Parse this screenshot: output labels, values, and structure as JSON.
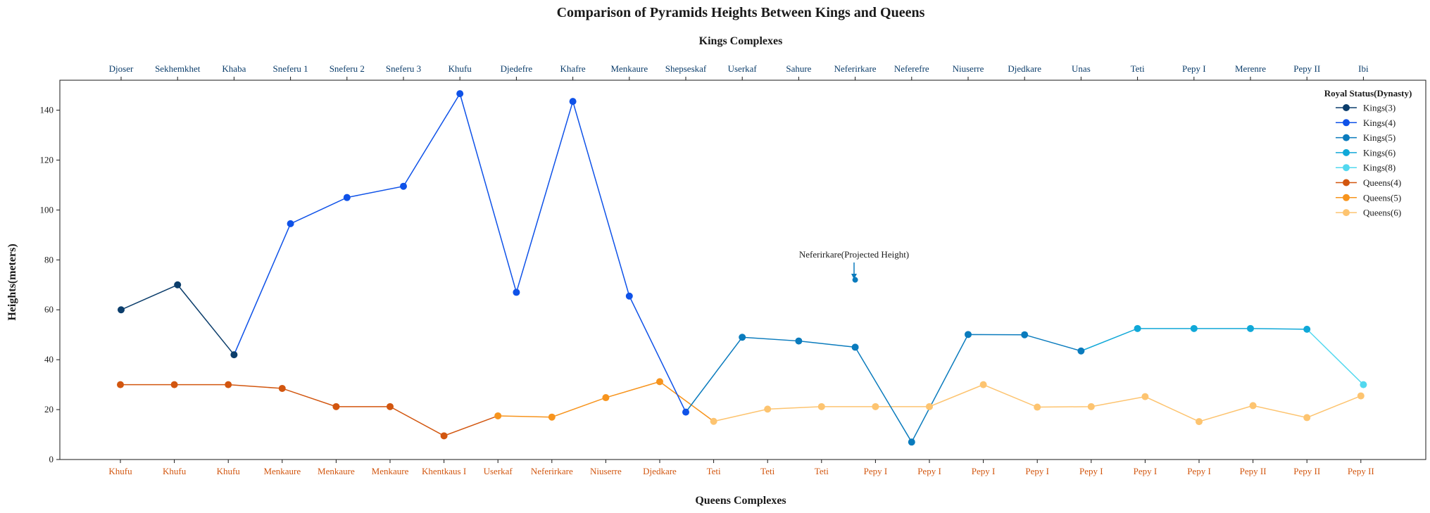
{
  "chart_data": {
    "type": "line",
    "title": "Comparison of Pyramids Heights Between Kings and Queens",
    "top_axis_label": "Kings Complexes",
    "bottom_axis_label": "Queens Complexes",
    "ylabel": "Heights(meters)",
    "ylim": [
      0,
      152
    ],
    "yticks": [
      0,
      20,
      40,
      60,
      80,
      100,
      120,
      140
    ],
    "legend_title": "Royal Status(Dynasty)",
    "legend_position": "top-right",
    "kings": {
      "labels": [
        "Djoser",
        "Sekhemkhet",
        "Khaba",
        "Sneferu 1",
        "Sneferu 2",
        "Sneferu 3",
        "Khufu",
        "Djedefre",
        "Khafre",
        "Menkaure",
        "Shepseskaf",
        "Userkaf",
        "Sahure",
        "Neferirkare",
        "Neferefre",
        "Niuserre",
        "Djedkare",
        "Unas",
        "Teti",
        "Pepy I",
        "Merenre",
        "Pepy II",
        "Ibi"
      ],
      "series": [
        {
          "name": "Kings(3)",
          "color": "#0b3d6b",
          "indices": [
            0,
            1,
            2
          ],
          "values": [
            60,
            70,
            42
          ]
        },
        {
          "name": "Kings(4)",
          "color": "#0f52e8",
          "indices": [
            2,
            3,
            4,
            5,
            6,
            7,
            8,
            9,
            10
          ],
          "values": [
            42,
            94.5,
            105,
            109.5,
            146.6,
            67,
            143.5,
            65.5,
            19
          ]
        },
        {
          "name": "Kings(5)",
          "color": "#0a7bbd",
          "indices": [
            10,
            11,
            12,
            13
          ],
          "values": [
            19,
            49,
            47.5,
            45
          ]
        },
        {
          "name": "Kings(5)",
          "color": "#0a7bbd",
          "indices": [
            13,
            14,
            15,
            16,
            17
          ],
          "values": [
            45,
            7,
            50.1,
            50,
            43.5
          ]
        },
        {
          "name": "Kings(6)",
          "color": "#10a8d8",
          "indices": [
            17,
            18,
            19,
            20,
            21
          ],
          "values": [
            43.5,
            52.5,
            52.5,
            52.5,
            52.2
          ]
        },
        {
          "name": "Kings(8)",
          "color": "#52d8ef",
          "indices": [
            21,
            22
          ],
          "values": [
            52.2,
            30
          ]
        }
      ],
      "markers": [
        {
          "i": 0,
          "v": 60,
          "color": "#0b3d6b"
        },
        {
          "i": 1,
          "v": 70,
          "color": "#0b3d6b"
        },
        {
          "i": 2,
          "v": 42,
          "color": "#0b3d6b"
        },
        {
          "i": 3,
          "v": 94.5,
          "color": "#0f52e8"
        },
        {
          "i": 4,
          "v": 105,
          "color": "#0f52e8"
        },
        {
          "i": 5,
          "v": 109.5,
          "color": "#0f52e8"
        },
        {
          "i": 6,
          "v": 146.6,
          "color": "#0f52e8"
        },
        {
          "i": 7,
          "v": 67,
          "color": "#0f52e8"
        },
        {
          "i": 8,
          "v": 143.5,
          "color": "#0f52e8"
        },
        {
          "i": 9,
          "v": 65.5,
          "color": "#0f52e8"
        },
        {
          "i": 10,
          "v": 19,
          "color": "#0f52e8"
        },
        {
          "i": 11,
          "v": 49,
          "color": "#0a7bbd"
        },
        {
          "i": 12,
          "v": 47.5,
          "color": "#0a7bbd"
        },
        {
          "i": 13,
          "v": 45,
          "color": "#0a7bbd"
        },
        {
          "i": 14,
          "v": 7,
          "color": "#0a7bbd"
        },
        {
          "i": 15,
          "v": 50.1,
          "color": "#0a7bbd"
        },
        {
          "i": 16,
          "v": 50,
          "color": "#0a7bbd"
        },
        {
          "i": 17,
          "v": 43.5,
          "color": "#0a7bbd"
        },
        {
          "i": 18,
          "v": 52.5,
          "color": "#10a8d8"
        },
        {
          "i": 19,
          "v": 52.5,
          "color": "#10a8d8"
        },
        {
          "i": 20,
          "v": 52.5,
          "color": "#10a8d8"
        },
        {
          "i": 21,
          "v": 52.2,
          "color": "#10a8d8"
        },
        {
          "i": 22,
          "v": 30,
          "color": "#52d8ef"
        }
      ],
      "projected": {
        "i": 13,
        "v": 72,
        "color": "#0a7bbd",
        "text": "Neferirkare(Projected Height)"
      }
    },
    "queens": {
      "labels": [
        "Khufu",
        "Khufu",
        "Khufu",
        "Menkaure",
        "Menkaure",
        "Menkaure",
        "Khentkaus I",
        "Userkaf",
        "Neferirkare",
        "Niuserre",
        "Djedkare",
        "Teti",
        "Teti",
        "Teti",
        "Pepy I",
        "Pepy I",
        "Pepy I",
        "Pepy I",
        "Pepy I",
        "Pepy I",
        "Pepy I",
        "Pepy II",
        "Pepy II",
        "Pepy II"
      ],
      "series": [
        {
          "name": "Queens(4)",
          "color": "#d2560f",
          "indices": [
            0,
            1,
            2,
            3,
            4,
            5,
            6,
            7
          ],
          "values": [
            30,
            30,
            30,
            28.5,
            21.2,
            21.2,
            9.5,
            17.5
          ]
        },
        {
          "name": "Queens(5)",
          "color": "#f7941d",
          "indices": [
            7,
            8,
            9,
            10,
            11
          ],
          "values": [
            17.5,
            17,
            24.8,
            31.2,
            15.3
          ]
        },
        {
          "name": "Queens(6)",
          "color": "#fdc470",
          "indices": [
            11,
            12,
            13,
            14,
            15,
            16,
            17,
            18,
            19,
            20,
            21,
            22,
            23
          ],
          "values": [
            15.3,
            20.2,
            21.2,
            21.2,
            21.2,
            30,
            21,
            21.2,
            25.2,
            15.2,
            21.6,
            16.8,
            25.5
          ]
        }
      ],
      "markers": [
        {
          "i": 0,
          "v": 30,
          "color": "#d2560f"
        },
        {
          "i": 1,
          "v": 30,
          "color": "#d2560f"
        },
        {
          "i": 2,
          "v": 30,
          "color": "#d2560f"
        },
        {
          "i": 3,
          "v": 28.5,
          "color": "#d2560f"
        },
        {
          "i": 4,
          "v": 21.2,
          "color": "#d2560f"
        },
        {
          "i": 5,
          "v": 21.2,
          "color": "#d2560f"
        },
        {
          "i": 6,
          "v": 9.5,
          "color": "#d2560f"
        },
        {
          "i": 7,
          "v": 17.5,
          "color": "#f7941d"
        },
        {
          "i": 8,
          "v": 17,
          "color": "#f7941d"
        },
        {
          "i": 9,
          "v": 24.8,
          "color": "#f7941d"
        },
        {
          "i": 10,
          "v": 31.2,
          "color": "#f7941d"
        },
        {
          "i": 11,
          "v": 15.3,
          "color": "#fdc470"
        },
        {
          "i": 12,
          "v": 20.2,
          "color": "#fdc470"
        },
        {
          "i": 13,
          "v": 21.2,
          "color": "#fdc470"
        },
        {
          "i": 14,
          "v": 21.2,
          "color": "#fdc470"
        },
        {
          "i": 15,
          "v": 21.2,
          "color": "#fdc470"
        },
        {
          "i": 16,
          "v": 30,
          "color": "#fdc470"
        },
        {
          "i": 17,
          "v": 21,
          "color": "#fdc470"
        },
        {
          "i": 18,
          "v": 21.2,
          "color": "#fdc470"
        },
        {
          "i": 19,
          "v": 25.2,
          "color": "#fdc470"
        },
        {
          "i": 20,
          "v": 15.2,
          "color": "#fdc470"
        },
        {
          "i": 21,
          "v": 21.6,
          "color": "#fdc470"
        },
        {
          "i": 22,
          "v": 16.8,
          "color": "#fdc470"
        },
        {
          "i": 23,
          "v": 25.5,
          "color": "#fdc470"
        }
      ]
    },
    "legend": [
      {
        "label": "Kings(3)",
        "color": "#0b3d6b"
      },
      {
        "label": "Kings(4)",
        "color": "#0f52e8"
      },
      {
        "label": "Kings(5)",
        "color": "#0a7bbd"
      },
      {
        "label": "Kings(6)",
        "color": "#10a8d8"
      },
      {
        "label": "Kings(8)",
        "color": "#52d8ef"
      },
      {
        "label": "Queens(4)",
        "color": "#d2560f"
      },
      {
        "label": "Queens(5)",
        "color": "#f7941d"
      },
      {
        "label": "Queens(6)",
        "color": "#fdc470"
      }
    ]
  }
}
